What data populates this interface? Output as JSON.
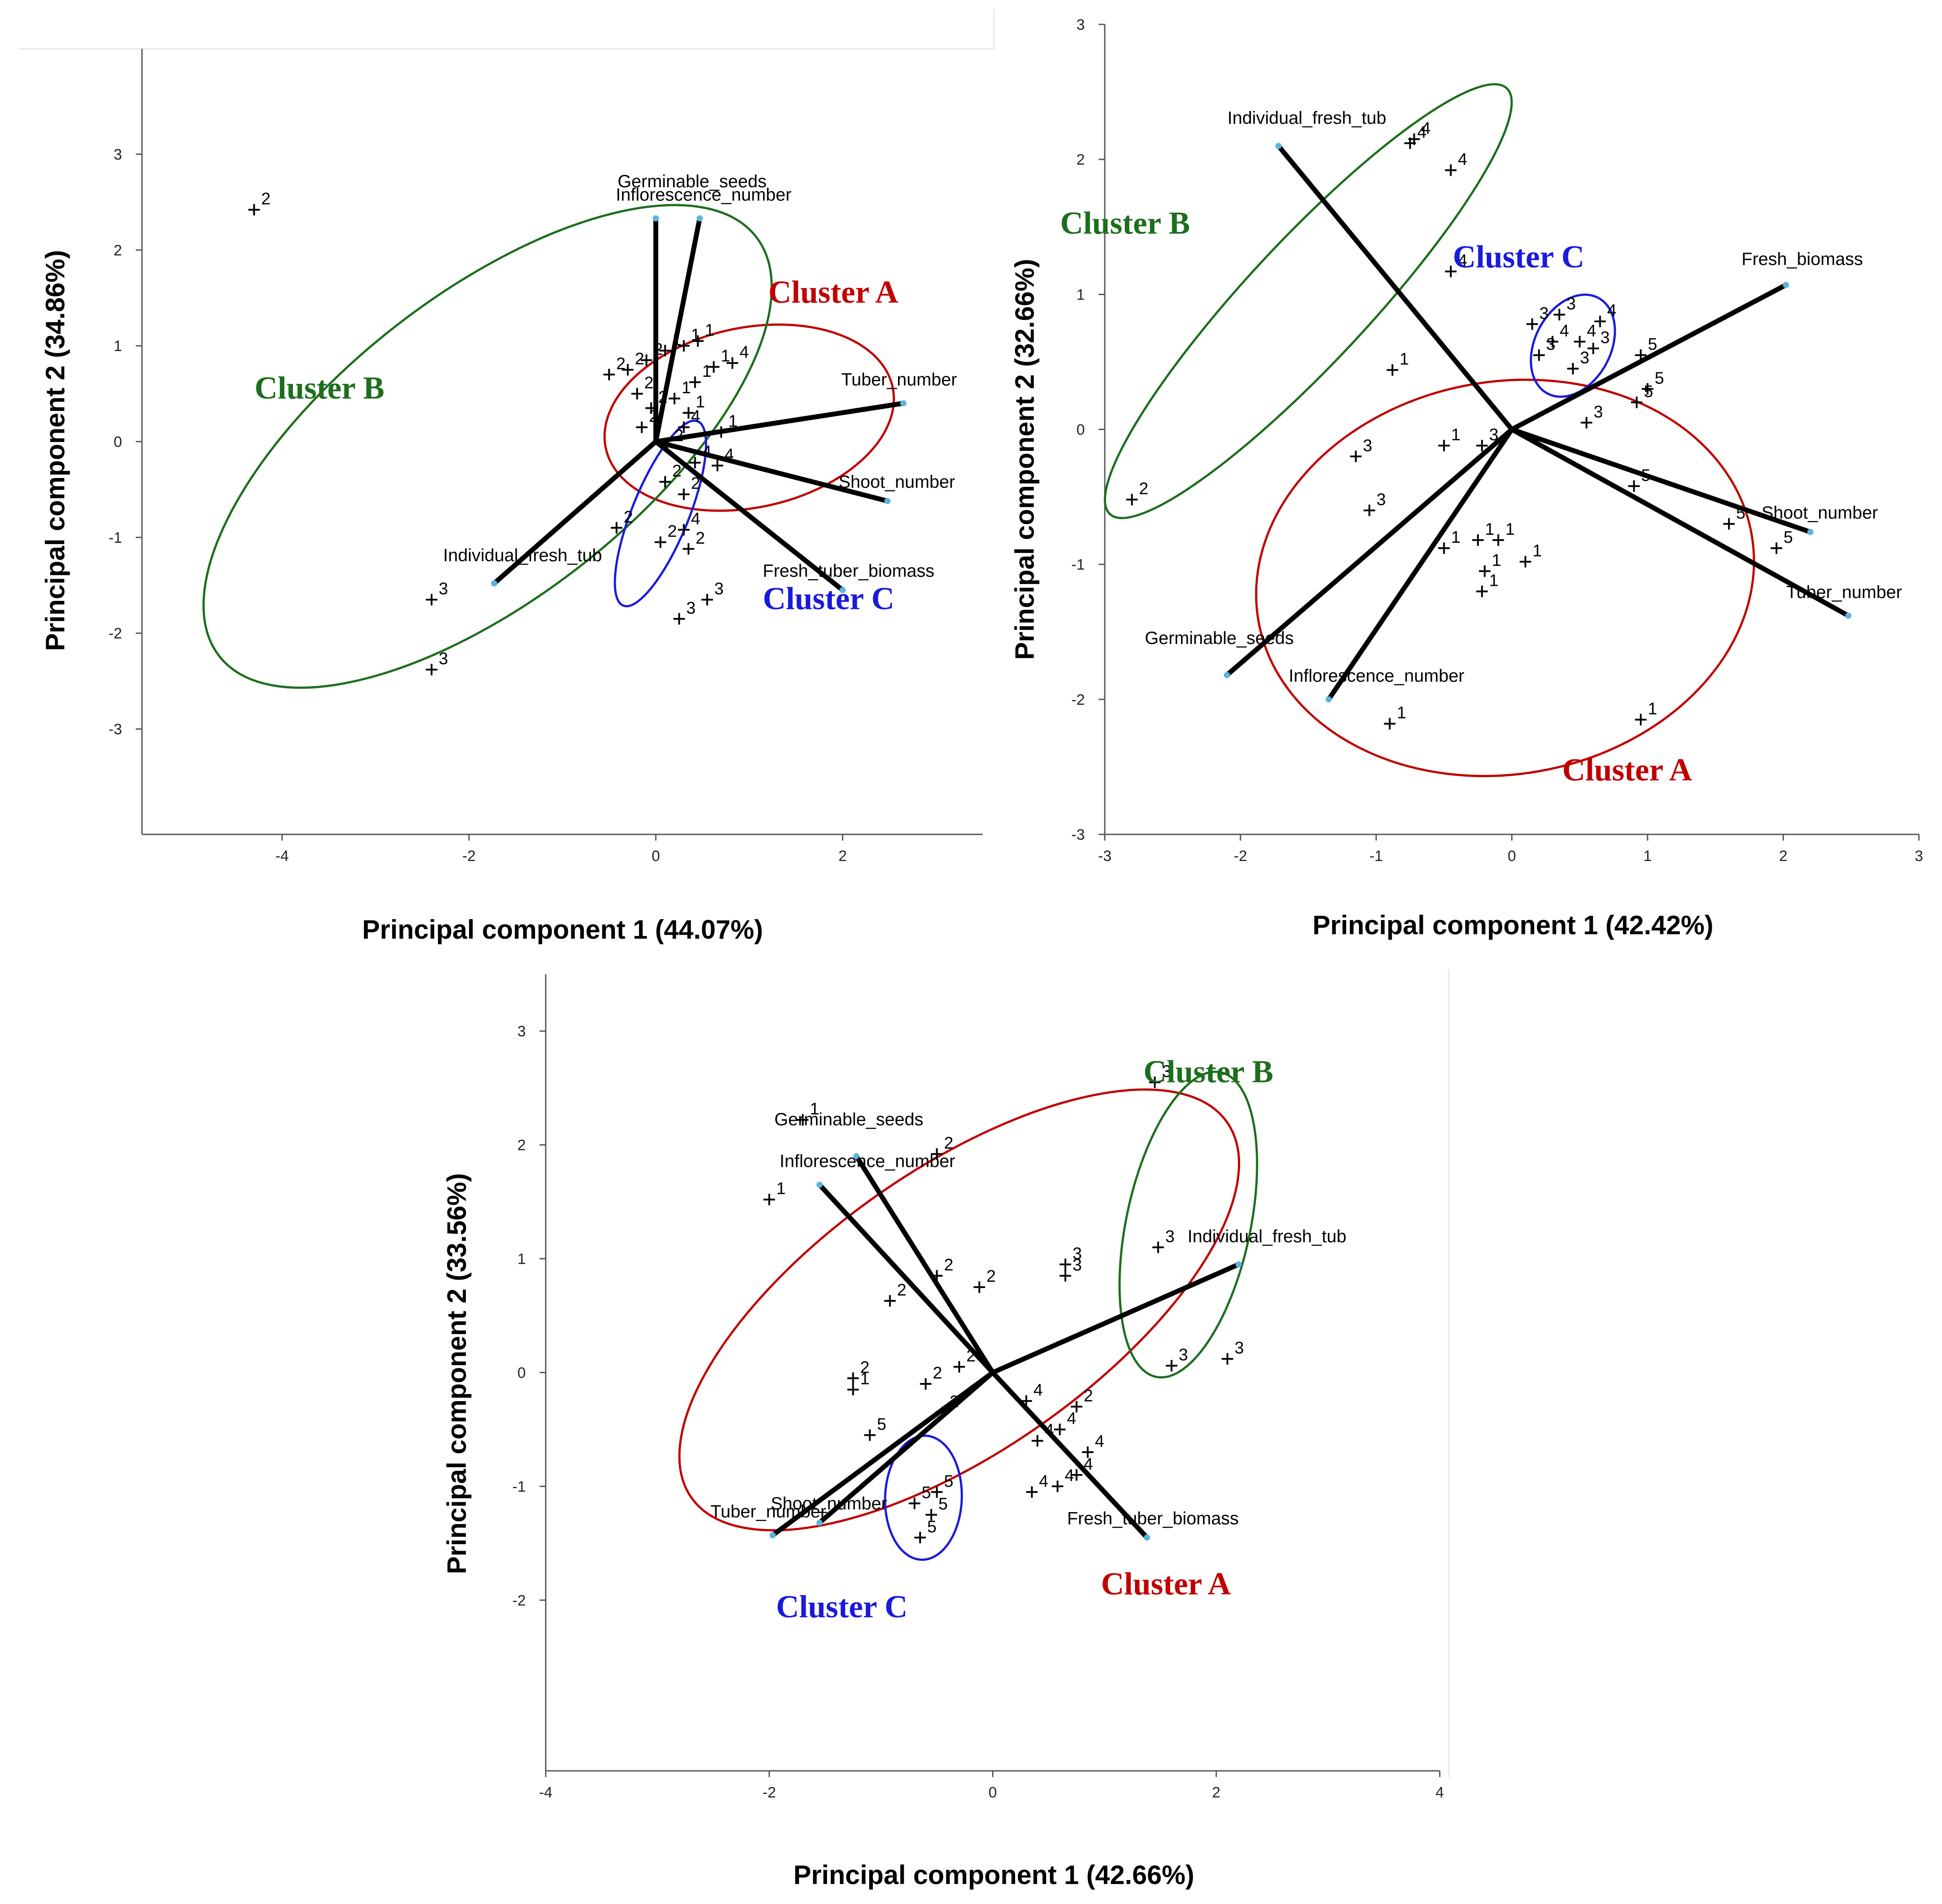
{
  "chart_data": [
    {
      "type": "scatter",
      "subtype": "pca-biplot",
      "xlabel": "Principal component 1 (44.07%)",
      "ylabel": "Principal component 2 (34.86%)",
      "xlim": [
        -5.5,
        3.5
      ],
      "ylim": [
        -4.1,
        4.1
      ],
      "xticks": [
        -4,
        -2,
        0,
        2
      ],
      "yticks": [
        -3,
        -2,
        -1,
        0,
        1,
        2,
        3
      ],
      "vectors": [
        {
          "label": "Inflorescence_number",
          "x": 0.0,
          "y": 2.33
        },
        {
          "label": "Germinable_seeds",
          "x": 0.47,
          "y": 2.33
        },
        {
          "label": "Tuber_number",
          "x": 2.65,
          "y": 0.4
        },
        {
          "label": "Shoot_number",
          "x": 2.48,
          "y": -0.62
        },
        {
          "label": "Fresh_tuber_biomass",
          "x": 2.0,
          "y": -1.55
        },
        {
          "label": "Individual_fresh_tub",
          "x": -1.73,
          "y": -1.48
        }
      ],
      "points": [
        {
          "label": "2",
          "x": -4.3,
          "y": 2.42
        },
        {
          "label": "3",
          "x": -2.4,
          "y": -1.65
        },
        {
          "label": "3",
          "x": -2.4,
          "y": -2.38
        },
        {
          "label": "1",
          "x": 0.1,
          "y": 0.95
        },
        {
          "label": "2",
          "x": -0.1,
          "y": 0.85
        },
        {
          "label": "1",
          "x": 0.3,
          "y": 1.0
        },
        {
          "label": "1",
          "x": 0.45,
          "y": 1.05
        },
        {
          "label": "1",
          "x": 0.62,
          "y": 0.78
        },
        {
          "label": "4",
          "x": 0.82,
          "y": 0.82
        },
        {
          "label": "2",
          "x": -0.3,
          "y": 0.75
        },
        {
          "label": "1",
          "x": 0.42,
          "y": 0.62
        },
        {
          "label": "2",
          "x": -0.5,
          "y": 0.7
        },
        {
          "label": "2",
          "x": -0.2,
          "y": 0.5
        },
        {
          "label": "1",
          "x": 0.2,
          "y": 0.45
        },
        {
          "label": "2",
          "x": -0.05,
          "y": 0.35
        },
        {
          "label": "1",
          "x": 0.35,
          "y": 0.3
        },
        {
          "label": "2",
          "x": -0.15,
          "y": 0.15
        },
        {
          "label": "4",
          "x": 0.3,
          "y": 0.15
        },
        {
          "label": "1",
          "x": 0.7,
          "y": 0.1
        },
        {
          "label": "2",
          "x": 0.12,
          "y": -0.05
        },
        {
          "label": "4",
          "x": 0.42,
          "y": -0.22
        },
        {
          "label": "4",
          "x": 0.66,
          "y": -0.25
        },
        {
          "label": "2",
          "x": 0.1,
          "y": -0.42
        },
        {
          "label": "2",
          "x": 0.3,
          "y": -0.55
        },
        {
          "label": "2",
          "x": -0.42,
          "y": -0.9
        },
        {
          "label": "4",
          "x": 0.3,
          "y": -0.92
        },
        {
          "label": "2",
          "x": 0.05,
          "y": -1.05
        },
        {
          "label": "2",
          "x": 0.35,
          "y": -1.12
        },
        {
          "label": "3",
          "x": 0.55,
          "y": -1.65
        },
        {
          "label": "3",
          "x": 0.25,
          "y": -1.85
        }
      ],
      "clusters": [
        {
          "label": "Cluster A",
          "color": "#c00000",
          "cx": 1.0,
          "cy": 0.25,
          "rx": 1.55,
          "ry": 0.95,
          "angle": -12,
          "label_x": 1.9,
          "label_y": 1.45
        },
        {
          "label": "Cluster B",
          "color": "#1d6e1d",
          "cx": -1.8,
          "cy": -0.05,
          "rx": 3.6,
          "ry": 1.6,
          "angle": -38,
          "label_x": -3.6,
          "label_y": 0.45
        },
        {
          "label": "Cluster C",
          "color": "#1a1adc",
          "cx": 0.05,
          "cy": -0.75,
          "rx": 1.05,
          "ry": 0.3,
          "angle": -68,
          "label_x": 1.85,
          "label_y": -1.75
        }
      ]
    },
    {
      "type": "scatter",
      "subtype": "pca-biplot",
      "xlabel": "Principal component 1 (42.42%)",
      "ylabel": "Principal component 2 (32.66%)",
      "xlim": [
        -3,
        3
      ],
      "ylim": [
        -3,
        3
      ],
      "xticks": [
        -3,
        -2,
        -1,
        0,
        1,
        2,
        3
      ],
      "yticks": [
        -3,
        -2,
        -1,
        0,
        1,
        2,
        3
      ],
      "vectors": [
        {
          "label": "Individual_fresh_tub",
          "x": -1.72,
          "y": 2.1
        },
        {
          "label": "Fresh_biomass",
          "x": 2.02,
          "y": 1.07
        },
        {
          "label": "Shoot_number",
          "x": 2.2,
          "y": -0.76
        },
        {
          "label": "Tuber_number",
          "x": 2.48,
          "y": -1.38
        },
        {
          "label": "Germinable_seeds",
          "x": -2.1,
          "y": -1.82
        },
        {
          "label": "Inflorescence_number",
          "x": -1.35,
          "y": -2.0
        }
      ],
      "points": [
        {
          "label": "4",
          "x": -0.72,
          "y": 2.15
        },
        {
          "label": "4",
          "x": -0.75,
          "y": 2.12
        },
        {
          "label": "4",
          "x": -0.45,
          "y": 1.92
        },
        {
          "label": "4",
          "x": -0.45,
          "y": 1.17
        },
        {
          "label": "1",
          "x": -0.88,
          "y": 0.44
        },
        {
          "label": "2",
          "x": -2.8,
          "y": -0.52
        },
        {
          "label": "3",
          "x": -1.15,
          "y": -0.2
        },
        {
          "label": "3",
          "x": -1.05,
          "y": -0.6
        },
        {
          "label": "1",
          "x": -0.5,
          "y": -0.12
        },
        {
          "label": "3",
          "x": -0.22,
          "y": -0.12
        },
        {
          "label": "3",
          "x": 0.15,
          "y": 0.78
        },
        {
          "label": "3",
          "x": 0.35,
          "y": 0.85
        },
        {
          "label": "4",
          "x": 0.65,
          "y": 0.8
        },
        {
          "label": "4",
          "x": 0.3,
          "y": 0.65
        },
        {
          "label": "4",
          "x": 0.5,
          "y": 0.65
        },
        {
          "label": "3",
          "x": 0.2,
          "y": 0.55
        },
        {
          "label": "3",
          "x": 0.6,
          "y": 0.6
        },
        {
          "label": "3",
          "x": 0.45,
          "y": 0.45
        },
        {
          "label": "5",
          "x": 0.95,
          "y": 0.55
        },
        {
          "label": "5",
          "x": 0.92,
          "y": 0.2
        },
        {
          "label": "5",
          "x": 1.0,
          "y": 0.3
        },
        {
          "label": "3",
          "x": 0.55,
          "y": 0.05
        },
        {
          "label": "5",
          "x": 0.9,
          "y": -0.42
        },
        {
          "label": "5",
          "x": 1.6,
          "y": -0.7
        },
        {
          "label": "5",
          "x": 1.95,
          "y": -0.88
        },
        {
          "label": "1",
          "x": -0.5,
          "y": -0.88
        },
        {
          "label": "1",
          "x": -0.25,
          "y": -0.82
        },
        {
          "label": "1",
          "x": -0.1,
          "y": -0.82
        },
        {
          "label": "1",
          "x": 0.1,
          "y": -0.98
        },
        {
          "label": "1",
          "x": -0.2,
          "y": -1.05
        },
        {
          "label": "1",
          "x": -0.22,
          "y": -1.2
        },
        {
          "label": "1",
          "x": -0.9,
          "y": -2.18
        },
        {
          "label": "1",
          "x": 0.95,
          "y": -2.15
        }
      ],
      "clusters": [
        {
          "label": "Cluster A",
          "color": "#c00000",
          "cx": -0.05,
          "cy": -1.1,
          "rx": 1.85,
          "ry": 1.45,
          "angle": -10,
          "label_x": 0.85,
          "label_y": -2.6
        },
        {
          "label": "Cluster B",
          "color": "#1d6e1d",
          "cx": -1.5,
          "cy": 0.95,
          "rx": 2.15,
          "ry": 0.45,
          "angle": -47,
          "label_x": -2.85,
          "label_y": 1.45
        },
        {
          "label": "Cluster C",
          "color": "#1a1adc",
          "cx": 0.45,
          "cy": 0.62,
          "rx": 0.4,
          "ry": 0.28,
          "angle": -62,
          "label_x": 0.05,
          "label_y": 1.2
        }
      ]
    },
    {
      "type": "scatter",
      "subtype": "pca-biplot",
      "xlabel": "Principal component 1 (42.66%)",
      "ylabel": "Principal component 2 (33.56%)",
      "xlim": [
        -4,
        4
      ],
      "ylim": [
        -3.5,
        3.5
      ],
      "xticks": [
        -4,
        -2,
        0,
        2,
        4
      ],
      "yticks": [
        -2,
        -1,
        0,
        1,
        2,
        3
      ],
      "vectors": [
        {
          "label": "Germinable_seeds",
          "x": -1.22,
          "y": 1.9
        },
        {
          "label": "Inflorescence_number",
          "x": -1.55,
          "y": 1.65
        },
        {
          "label": "Individual_fresh_tub",
          "x": 2.2,
          "y": 0.95
        },
        {
          "label": "Fresh_tuber_biomass",
          "x": 1.38,
          "y": -1.45
        },
        {
          "label": "Shoot_number",
          "x": -1.55,
          "y": -1.32
        },
        {
          "label": "Tuber_number",
          "x": -1.97,
          "y": -1.43
        }
      ],
      "points": [
        {
          "label": "1",
          "x": -1.7,
          "y": 2.22
        },
        {
          "label": "1",
          "x": -2.0,
          "y": 1.52
        },
        {
          "label": "2",
          "x": -0.5,
          "y": 1.92
        },
        {
          "label": "3",
          "x": 1.45,
          "y": 2.55
        },
        {
          "label": "3",
          "x": 1.48,
          "y": 1.1
        },
        {
          "label": "3",
          "x": 0.65,
          "y": 0.95
        },
        {
          "label": "3",
          "x": 0.65,
          "y": 0.85
        },
        {
          "label": "2",
          "x": -0.5,
          "y": 0.85
        },
        {
          "label": "2",
          "x": -0.12,
          "y": 0.75
        },
        {
          "label": "2",
          "x": -0.92,
          "y": 0.63
        },
        {
          "label": "3",
          "x": 1.6,
          "y": 0.06
        },
        {
          "label": "3",
          "x": 2.1,
          "y": 0.12
        },
        {
          "label": "2",
          "x": -1.25,
          "y": -0.05
        },
        {
          "label": "1",
          "x": -1.25,
          "y": -0.15
        },
        {
          "label": "2",
          "x": -0.6,
          "y": -0.1
        },
        {
          "label": "2",
          "x": -0.3,
          "y": 0.05
        },
        {
          "label": "2",
          "x": -0.45,
          "y": -0.35
        },
        {
          "label": "4",
          "x": 0.3,
          "y": -0.25
        },
        {
          "label": "4",
          "x": 0.4,
          "y": -0.6
        },
        {
          "label": "4",
          "x": 0.6,
          "y": -0.5
        },
        {
          "label": "2",
          "x": 0.75,
          "y": -0.3
        },
        {
          "label": "4",
          "x": 0.85,
          "y": -0.7
        },
        {
          "label": "4",
          "x": 0.75,
          "y": -0.9
        },
        {
          "label": "4",
          "x": 0.35,
          "y": -1.05
        },
        {
          "label": "4",
          "x": 0.58,
          "y": -1.0
        },
        {
          "label": "5",
          "x": -1.1,
          "y": -0.55
        },
        {
          "label": "5",
          "x": -0.7,
          "y": -1.15
        },
        {
          "label": "5",
          "x": -0.55,
          "y": -1.25
        },
        {
          "label": "5",
          "x": -0.5,
          "y": -1.05
        },
        {
          "label": "5",
          "x": -0.65,
          "y": -1.45
        }
      ],
      "clusters": [
        {
          "label": "Cluster A",
          "color": "#c00000",
          "cx": -0.3,
          "cy": 0.55,
          "rx": 2.9,
          "ry": 1.25,
          "angle": -35,
          "label_x": 1.55,
          "label_y": -1.95
        },
        {
          "label": "Cluster B",
          "color": "#1d6e1d",
          "cx": 1.75,
          "cy": 1.3,
          "rx": 1.38,
          "ry": 0.55,
          "angle": -78,
          "label_x": 1.93,
          "label_y": 2.55
        },
        {
          "label": "Cluster C",
          "color": "#1a1adc",
          "cx": -0.62,
          "cy": -1.1,
          "rx": 0.55,
          "ry": 0.34,
          "angle": -88,
          "label_x": -1.35,
          "label_y": -2.15
        }
      ]
    }
  ]
}
